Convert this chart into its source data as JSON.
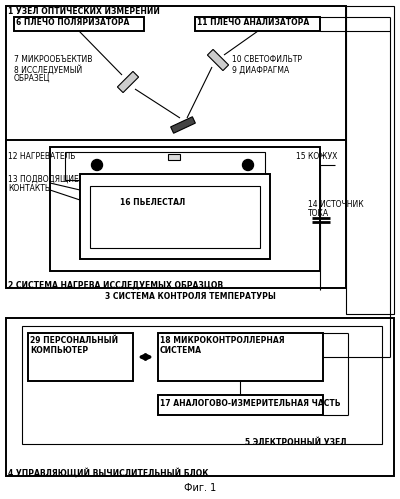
{
  "title": "Фиг. 1",
  "bg_color": "#ffffff",
  "labels": {
    "1": "1 УЗЕЛ ОПТИЧЕСКИХ ИЗМЕРЕНИЙ",
    "2": "2 СИСТЕМА НАГРЕВА ИССЛЕДУЕМЫХ ОБРАЗЦОВ",
    "3": "3 СИСТЕМА КОНТРОЛЯ ТЕМПЕРАТУРЫ",
    "4": "4 УПРАВЛЯЮЩИЙ ВЫЧИСЛИТЕЛЬНЫЙ БЛОК",
    "5": "5 ЭЛЕКТРОННЫЙ УЗЕЛ",
    "6": "6 ПЛЕЧО ПОЛЯРИЗАТОРА",
    "7": "7 МИКРООБЪЕКТИВ",
    "8_1": "8 ИССЛЕДУЕМЫЙ",
    "8_2": "ОБРАЗЕЦ",
    "9": "9 ДИАФРАГМА",
    "10": "10 СВЕТОФИЛЬТР",
    "11": "11 ПЛЕЧО АНАЛИЗАТОРА",
    "12": "12 НАГРЕВАТЕЛЬ",
    "13_1": "13 ПОДВОДЯЩИЕ",
    "13_2": "КОНТАКТЫ",
    "14_1": "14 ИСТОЧНИК",
    "14_2": "ТОКА",
    "15": "15 КОЖУХ",
    "16": "16 ПЬЕЛЕСТАЛ",
    "17": "17 АНАЛОГОВО-ИЗМЕРИТЕЛЬНАЯ ЧАСТЬ",
    "18_1": "18 МИКРОКОНТРОЛЛЕРНАЯ",
    "18_2": "СИСТЕМА",
    "29_1": "29 ПЕРСОНАЛЬНЫЙ",
    "29_2": "КОМПЬЮТЕР"
  }
}
